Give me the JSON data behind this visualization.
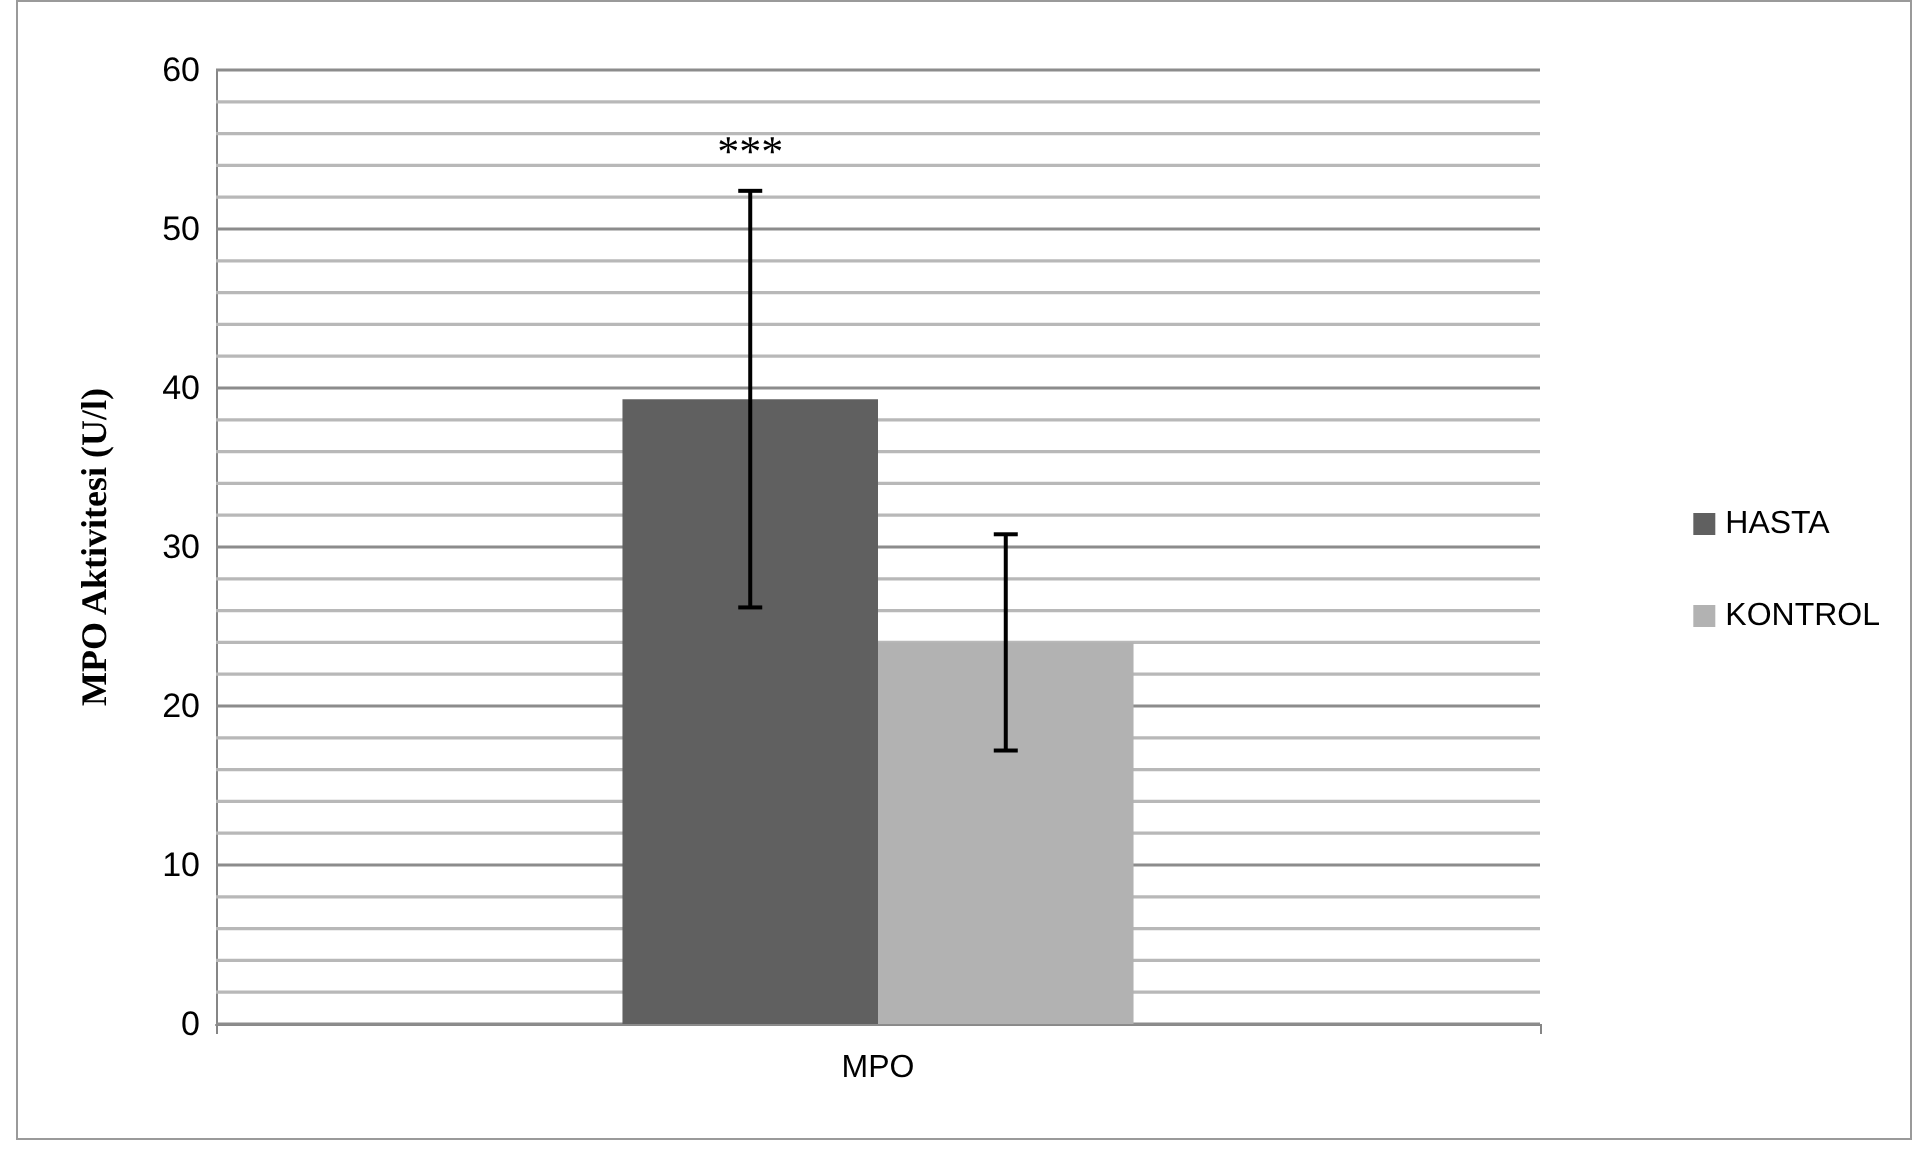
{
  "chart_data": {
    "type": "bar",
    "ylabel": "MPO Aktivitesi (U/l)",
    "categories": [
      "MPO"
    ],
    "series": [
      {
        "name": "HASTA",
        "color": "#606060",
        "values": [
          39.3
        ],
        "errors": [
          13.1
        ]
      },
      {
        "name": "KONTROL",
        "color": "#b2b2b2",
        "values": [
          24.0
        ],
        "errors": [
          6.8
        ]
      }
    ],
    "ylim": [
      0,
      60
    ],
    "yticks": [
      0,
      {
        "value": 2,
        "label": null
      },
      {
        "value": 4,
        "label": null
      },
      {
        "value": 6,
        "label": null
      },
      {
        "value": 8,
        "label": null
      },
      10,
      {
        "value": 12,
        "label": null
      },
      {
        "value": 14,
        "label": null
      },
      {
        "value": 16,
        "label": null
      },
      {
        "value": 18,
        "label": null
      },
      20,
      {
        "value": 22,
        "label": null
      },
      {
        "value": 24,
        "label": null
      },
      {
        "value": 26,
        "label": null
      },
      {
        "value": 28,
        "label": null
      },
      30,
      {
        "value": 32,
        "label": null
      },
      {
        "value": 34,
        "label": null
      },
      {
        "value": 36,
        "label": null
      },
      {
        "value": 38,
        "label": null
      },
      40,
      {
        "value": 42,
        "label": null
      },
      {
        "value": 44,
        "label": null
      },
      {
        "value": 46,
        "label": null
      },
      {
        "value": 48,
        "label": null
      },
      50,
      {
        "value": 52,
        "label": null
      },
      {
        "value": 54,
        "label": null
      },
      {
        "value": 56,
        "label": null
      },
      {
        "value": 58,
        "label": null
      },
      60
    ],
    "grid": true,
    "legend": "right",
    "annotations": [
      "***"
    ]
  }
}
